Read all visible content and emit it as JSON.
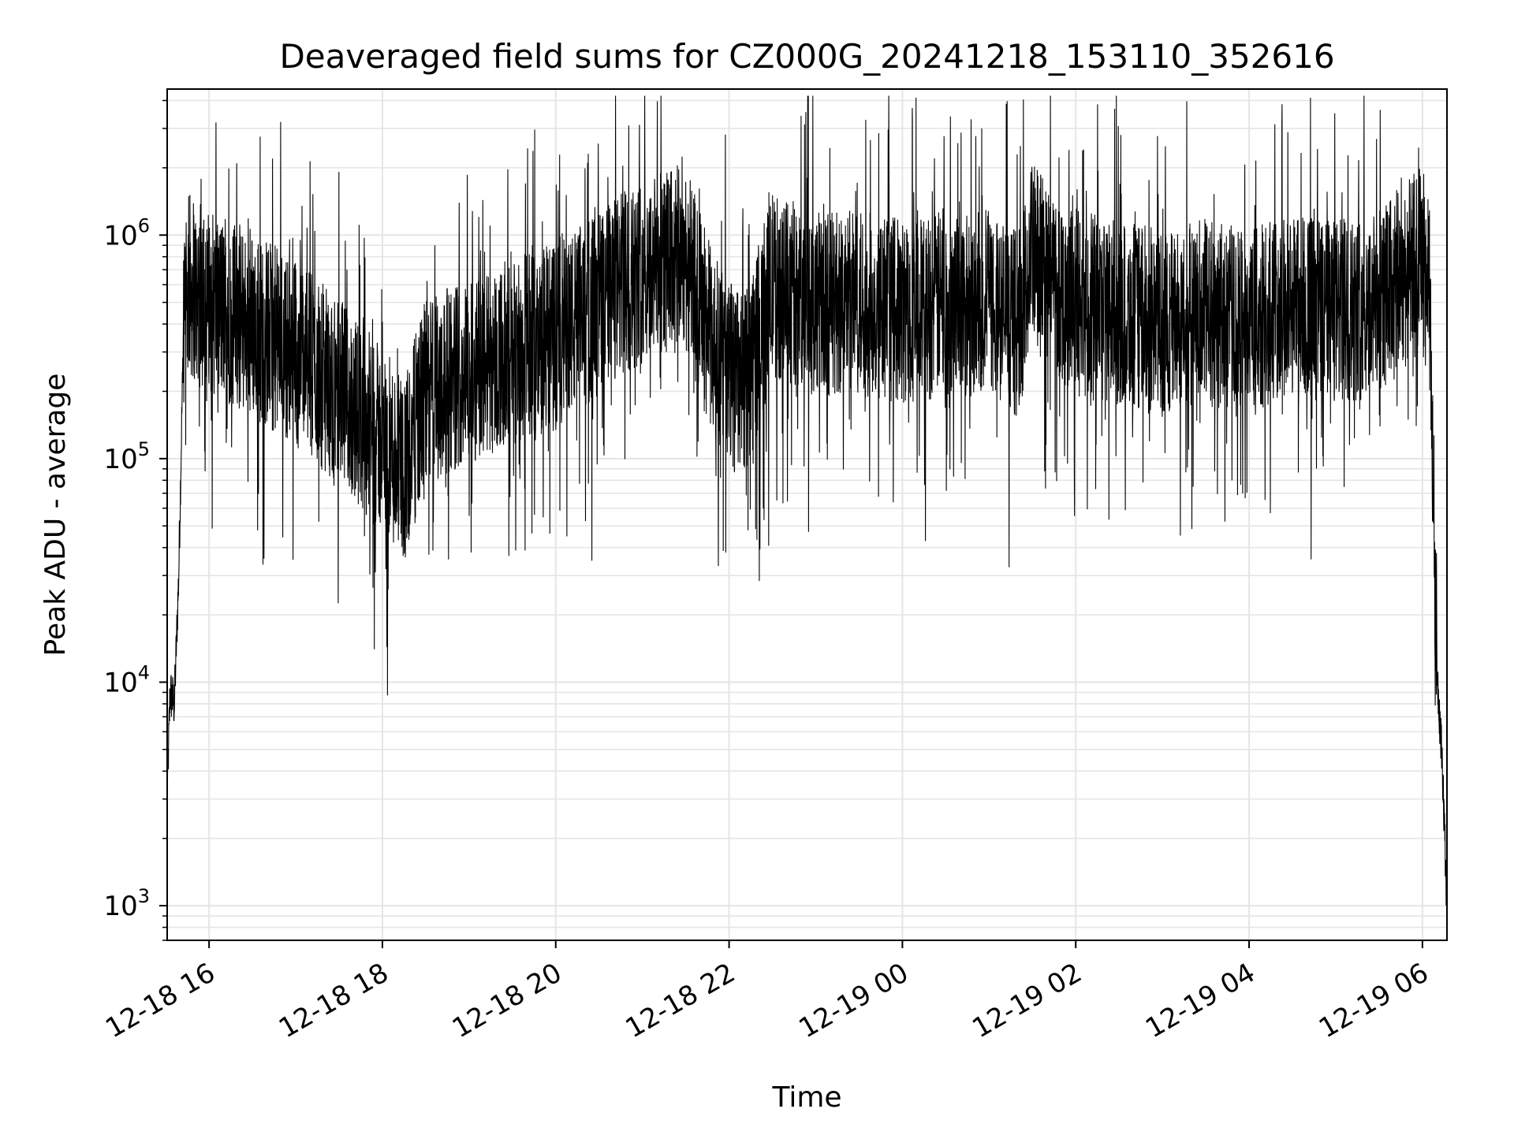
{
  "chart_data": {
    "type": "line",
    "title": "Deaveraged field sums for CZ000G_20241218_153110_352616",
    "xlabel": "Time",
    "ylabel": "Peak ADU - average",
    "yscale": "log",
    "ylim": [
      700,
      4500000
    ],
    "xlim": [
      "2024-12-18 15:31",
      "2024-12-19 06:17"
    ],
    "grid": true,
    "line_color": "#000000",
    "grid_color": "#e5e5e5",
    "x_ticks": [
      "12-18 16",
      "12-18 18",
      "12-18 20",
      "12-18 22",
      "12-19 00",
      "12-19 02",
      "12-19 04",
      "12-19 06"
    ],
    "y_ticks": [
      {
        "value": 1000,
        "base": "10",
        "exp": "3"
      },
      {
        "value": 10000,
        "base": "10",
        "exp": "4"
      },
      {
        "value": 100000,
        "base": "10",
        "exp": "5"
      },
      {
        "value": 1000000,
        "base": "10",
        "exp": "6"
      }
    ],
    "series": [
      {
        "x": [
          "2024-12-18 15:31",
          "2024-12-18 15:33",
          "2024-12-18 15:36",
          "2024-12-18 15:39",
          "2024-12-18 15:42",
          "2024-12-18 15:46",
          "2024-12-18 16:00",
          "2024-12-18 16:30",
          "2024-12-18 17:00",
          "2024-12-18 17:30",
          "2024-12-18 18:00",
          "2024-12-18 18:15",
          "2024-12-18 18:30",
          "2024-12-18 19:00",
          "2024-12-18 19:30",
          "2024-12-18 20:00",
          "2024-12-18 20:30",
          "2024-12-18 21:00",
          "2024-12-18 21:30",
          "2024-12-18 21:50",
          "2024-12-18 22:10",
          "2024-12-18 22:30",
          "2024-12-18 23:00",
          "2024-12-18 23:30",
          "2024-12-19 00:00",
          "2024-12-19 00:30",
          "2024-12-19 01:00",
          "2024-12-19 01:20",
          "2024-12-19 01:30",
          "2024-12-19 02:00",
          "2024-12-19 02:30",
          "2024-12-19 03:00",
          "2024-12-19 03:30",
          "2024-12-19 04:00",
          "2024-12-19 04:30",
          "2024-12-19 05:00",
          "2024-12-19 05:30",
          "2024-12-19 06:00",
          "2024-12-19 06:05",
          "2024-12-19 06:10",
          "2024-12-19 06:14",
          "2024-12-19 06:17"
        ],
        "y": [
          3000,
          9000,
          8000,
          30000,
          300000,
          600000,
          500000,
          400000,
          300000,
          200000,
          120000,
          90000,
          200000,
          250000,
          300000,
          350000,
          500000,
          700000,
          800000,
          300000,
          200000,
          600000,
          500000,
          500000,
          450000,
          500000,
          500000,
          400000,
          800000,
          500000,
          450000,
          400000,
          450000,
          400000,
          500000,
          450000,
          500000,
          800000,
          500000,
          12000,
          4000,
          1000
        ]
      }
    ]
  }
}
